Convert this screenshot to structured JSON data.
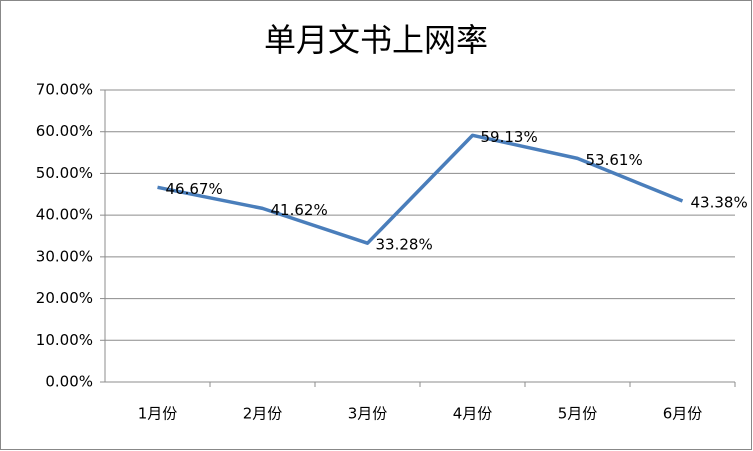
{
  "chart_data": {
    "type": "line",
    "title": "单月文书上网率",
    "categories": [
      "1月份",
      "2月份",
      "3月份",
      "4月份",
      "5月份",
      "6月份"
    ],
    "series": [
      {
        "color": "#4a7ebb",
        "values": [
          46.67,
          41.62,
          33.28,
          59.13,
          53.61,
          43.38
        ],
        "value_labels": [
          "46.67%",
          "41.62%",
          "33.28%",
          "59.13%",
          "53.61%",
          "43.38%"
        ]
      }
    ],
    "ylim": [
      0,
      70
    ],
    "yticks": [
      {
        "value": 0,
        "label": "0.00%"
      },
      {
        "value": 10,
        "label": "10.00%"
      },
      {
        "value": 20,
        "label": "20.00%"
      },
      {
        "value": 30,
        "label": "30.00%"
      },
      {
        "value": 40,
        "label": "40.00%"
      },
      {
        "value": 50,
        "label": "50.00%"
      },
      {
        "value": 60,
        "label": "60.00%"
      },
      {
        "value": 70,
        "label": "70.00%"
      }
    ],
    "grid": true
  }
}
